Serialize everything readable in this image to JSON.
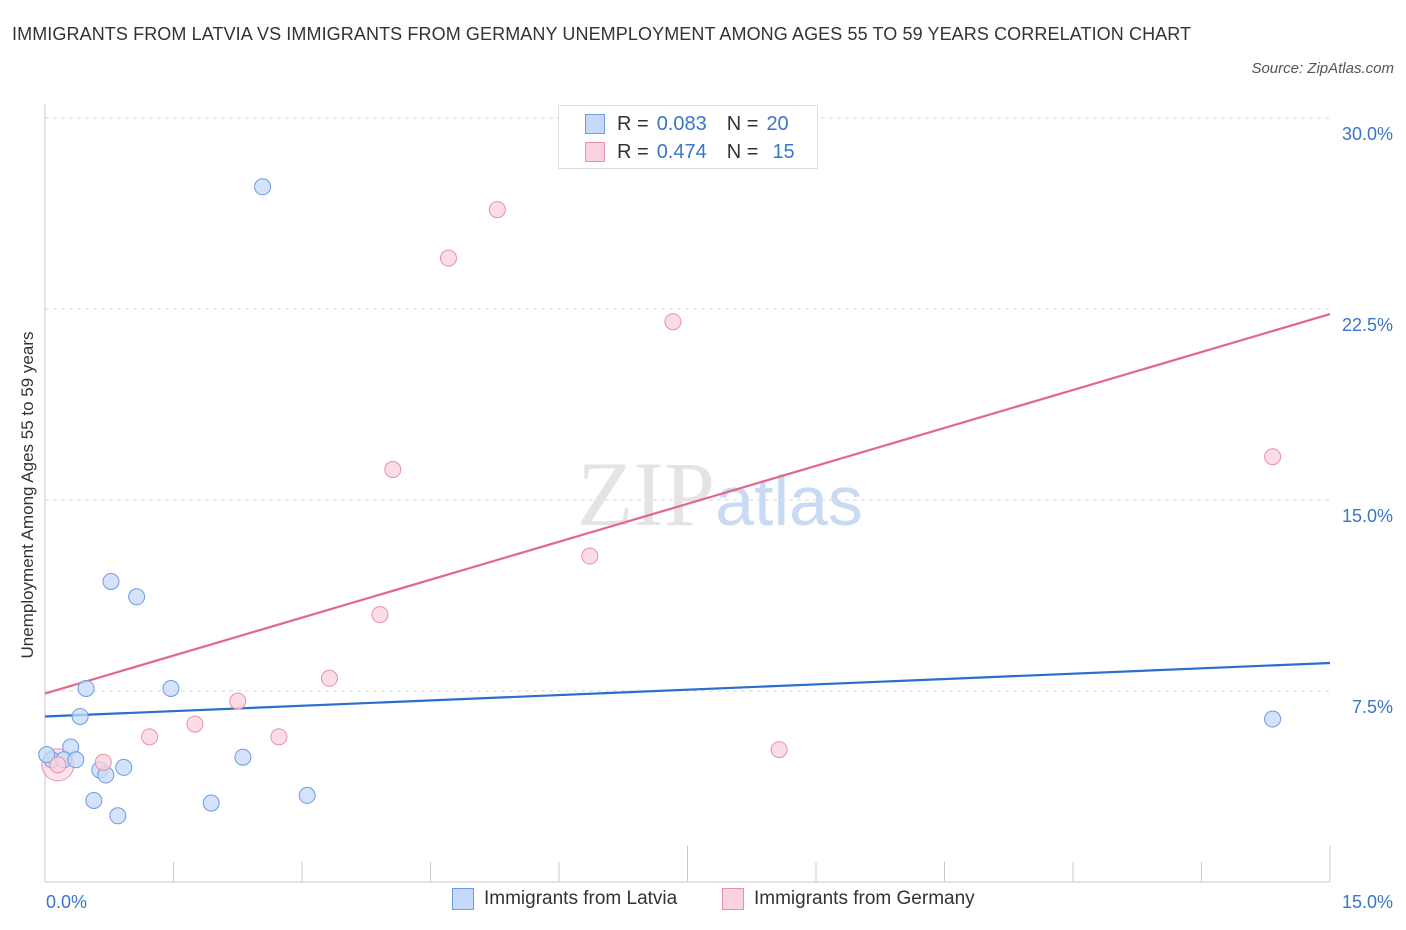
{
  "chart_data": {
    "type": "scatter",
    "title": "IMMIGRANTS FROM LATVIA VS IMMIGRANTS FROM GERMANY UNEMPLOYMENT AMONG AGES 55 TO 59 YEARS CORRELATION CHART",
    "source": "Source: ZipAtlas.com",
    "watermark": "ZIPatlas",
    "xlabel": "",
    "ylabel": "Unemployment Among Ages 55 to 59 years",
    "xlim": [
      0,
      15
    ],
    "ylim": [
      0,
      30
    ],
    "x_tick_labels": {
      "min": "0.0%",
      "max": "15.0%"
    },
    "y_ticks": [
      {
        "value": 7.5,
        "label": "7.5%"
      },
      {
        "value": 15,
        "label": "15.0%"
      },
      {
        "value": 22.5,
        "label": "22.5%"
      },
      {
        "value": 30,
        "label": "30.0%"
      }
    ],
    "series": [
      {
        "name": "Immigrants from Latvia",
        "color": "#6b9de0",
        "fill": "#c5dafa",
        "line_color": "#2a6fcc",
        "R": "0.083",
        "N": "20",
        "trend": [
          [
            0,
            6.5
          ],
          [
            15,
            8.6
          ]
        ],
        "points": [
          [
            2.54,
            27.3
          ],
          [
            0.77,
            11.8
          ],
          [
            1.07,
            11.2
          ],
          [
            0.48,
            7.6
          ],
          [
            1.47,
            7.6
          ],
          [
            0.41,
            6.5
          ],
          [
            0.3,
            5.3
          ],
          [
            0.08,
            4.8
          ],
          [
            0.22,
            4.8
          ],
          [
            0.36,
            4.8
          ],
          [
            0.64,
            4.4
          ],
          [
            0.71,
            4.2
          ],
          [
            0.92,
            4.5
          ],
          [
            2.31,
            4.9
          ],
          [
            0.57,
            3.2
          ],
          [
            3.06,
            3.4
          ],
          [
            1.94,
            3.1
          ],
          [
            0.85,
            2.6
          ],
          [
            14.33,
            6.4
          ],
          [
            0.02,
            5.0
          ]
        ]
      },
      {
        "name": "Immigrants from Germany",
        "color": "#e890aa",
        "fill": "#fbd1dd",
        "line_color": "#e06890",
        "R": "0.474",
        "N": "15",
        "trend": [
          [
            0,
            7.4
          ],
          [
            15,
            22.3
          ]
        ],
        "points": [
          [
            5.28,
            26.4
          ],
          [
            4.71,
            24.5
          ],
          [
            7.33,
            22.0
          ],
          [
            4.06,
            16.2
          ],
          [
            14.33,
            16.7
          ],
          [
            6.36,
            12.8
          ],
          [
            3.91,
            10.5
          ],
          [
            3.32,
            8.0
          ],
          [
            2.25,
            7.1
          ],
          [
            1.75,
            6.2
          ],
          [
            1.22,
            5.7
          ],
          [
            2.73,
            5.7
          ],
          [
            8.57,
            5.2
          ],
          [
            0.68,
            4.7
          ],
          [
            0.15,
            4.6
          ]
        ]
      }
    ]
  }
}
